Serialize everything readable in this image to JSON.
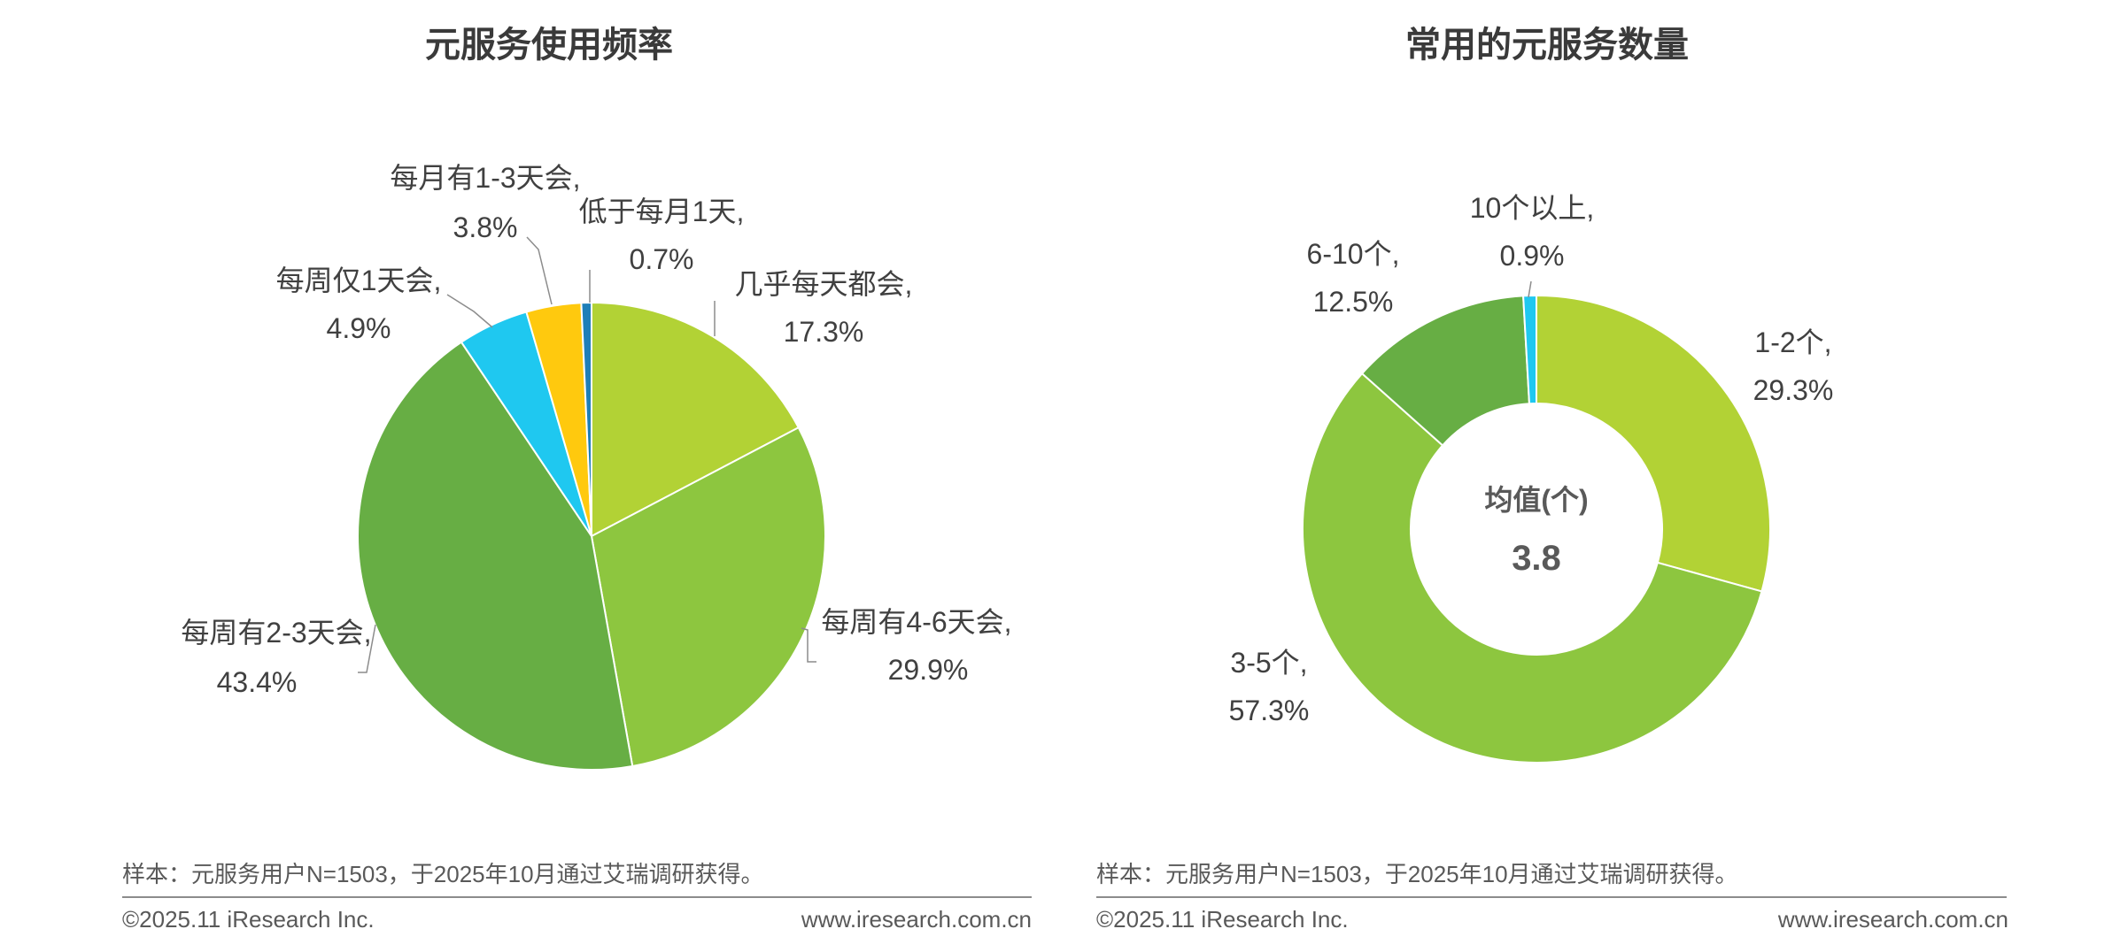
{
  "chart_data": [
    {
      "type": "pie",
      "title": "元服务使用频率",
      "unit": "%",
      "slices": [
        {
          "label": "几乎每天都会,",
          "value": 17.3,
          "value_text": "17.3%",
          "color": "#b2d235"
        },
        {
          "label": "每周有4-6天会,",
          "value": 29.9,
          "value_text": "29.9%",
          "color": "#8dc63f"
        },
        {
          "label": "每周有2-3天会,",
          "value": 43.4,
          "value_text": "43.4%",
          "color": "#67ae44"
        },
        {
          "label": "每周仅1天会,",
          "value": 4.9,
          "value_text": "4.9%",
          "color": "#1fc8f0"
        },
        {
          "label": "每月有1-3天会,",
          "value": 3.8,
          "value_text": "3.8%",
          "color": "#ffc90e"
        },
        {
          "label": "低于每月1天,",
          "value": 0.7,
          "value_text": "0.7%",
          "color": "#1e7fb8"
        }
      ]
    },
    {
      "type": "donut",
      "title": "常用的元服务数量",
      "unit": "%",
      "center_label": "均值(个)",
      "center_value": "3.8",
      "slices": [
        {
          "label": "1-2个,",
          "value": 29.3,
          "value_text": "29.3%",
          "color": "#b2d235"
        },
        {
          "label": "3-5个,",
          "value": 57.3,
          "value_text": "57.3%",
          "color": "#8dc63f"
        },
        {
          "label": "6-10个,",
          "value": 12.5,
          "value_text": "12.5%",
          "color": "#67ae44"
        },
        {
          "label": "10个以上,",
          "value": 0.9,
          "value_text": "0.9%",
          "color": "#1fc8f0"
        }
      ]
    }
  ],
  "footer": {
    "note": "样本：元服务用户N=1503，于2025年10月通过艾瑞调研获得。",
    "copyright": "©2025.11 iResearch Inc.",
    "website": "www.iresearch.com.cn"
  }
}
